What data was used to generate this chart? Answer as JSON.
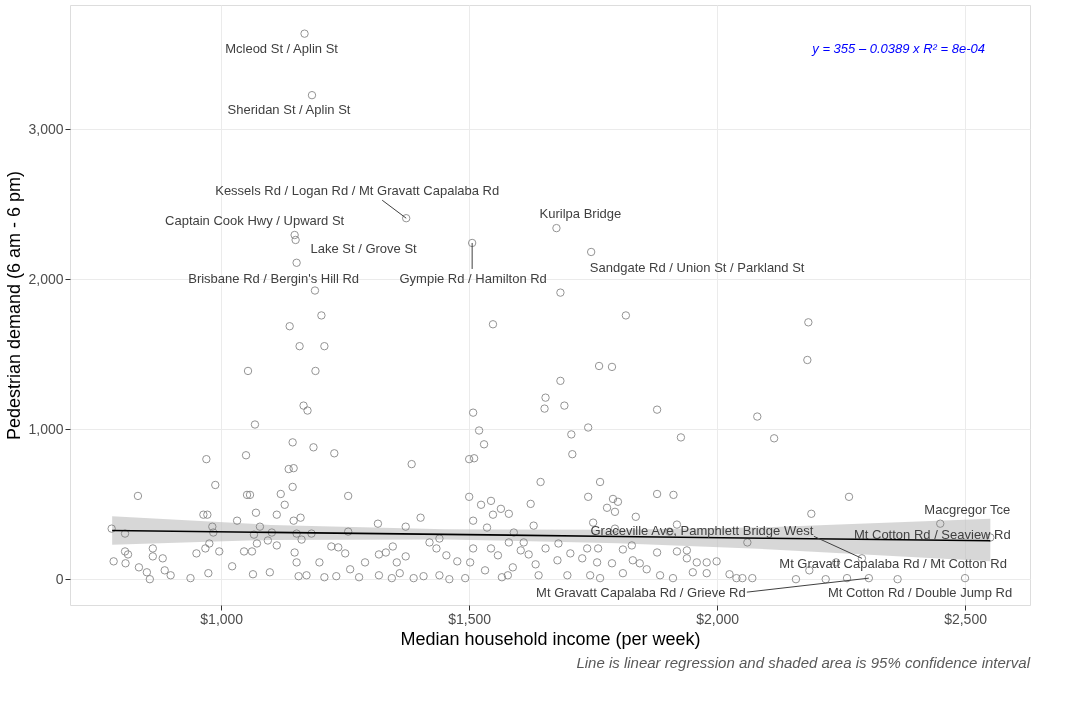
{
  "chart_data": {
    "type": "scatter",
    "xlabel": "Median household income (per week)",
    "ylabel": "Pedestrian demand (6 am - 6 pm)",
    "xlim": [
      695,
      2631
    ],
    "ylim": [
      -172,
      3827
    ],
    "xticks": [
      {
        "value": 1000,
        "label": "$1,000"
      },
      {
        "value": 1500,
        "label": "$1,500"
      },
      {
        "value": 2000,
        "label": "$2,000"
      },
      {
        "value": 2500,
        "label": "$2,500"
      }
    ],
    "yticks": [
      0,
      {
        "value": 1000,
        "label": "1,000"
      },
      {
        "value": 2000,
        "label": "2,000"
      },
      {
        "value": 3000,
        "label": "3,000"
      }
    ],
    "grid": true,
    "series": [
      {
        "color": "#808080",
        "marker": "circle",
        "x": [
          1168,
          1183,
          1373,
          1148,
          1150,
          1152,
          1506,
          1676,
          1746,
          2450,
          2292,
          2551,
          2240,
          2500,
          2306,
          1189,
          1684,
          1138,
          1202,
          1158,
          1208,
          1190,
          1054,
          1166,
          1174,
          1068,
          1144,
          1186,
          1228,
          1136,
          1146,
          970,
          1050,
          988,
          1052,
          1144,
          1070,
          964,
          1120,
          1128,
          1112,
          1160,
          1146,
          1058,
          832,
          972,
          982,
          984,
          976,
          968,
          950,
          996,
          779,
          806,
          806,
          812,
          783,
          807,
          862,
          862,
          882,
          886,
          834,
          850,
          856,
          898,
          938,
          974,
          1022,
          1032,
          1046,
          1062,
          1072,
          1078,
          1066,
          1064,
          1098,
          1094,
          1112,
          1102,
          1152,
          1162,
          1182,
          1148,
          1152,
          1156,
          1172,
          1198,
          1208,
          1232,
          1222,
          1236,
          1250,
          1256,
          1256,
          1260,
          1278,
          1290,
          1316,
          1318,
          1332,
          1346,
          1354,
          1318,
          1344,
          1360,
          1372,
          1372,
          1384,
          1402,
          1420,
          1434,
          1440,
          1388,
          1408,
          1440,
          1460,
          1454,
          1476,
          1492,
          1500,
          1500,
          1510,
          1508,
          1520,
          1530,
          1548,
          1524,
          1544,
          1548,
          1564,
          1580,
          1508,
          1536,
          1508,
          1502,
          1532,
          1544,
          1558,
          1580,
          1590,
          1588,
          1578,
          1566,
          1624,
          1644,
          1654,
          1652,
          1630,
          1610,
          1620,
          1604,
          1654,
          1634,
          1640,
          1816,
          2184,
          2182,
          1762,
          1788,
          1684,
          1692,
          1879,
          2081,
          2115,
          1927,
          1740,
          1706,
          1708,
          1764,
          1740,
          1879,
          1912,
          2266,
          2190,
          1790,
          1800,
          1778,
          1794,
          1836,
          1750,
          1794,
          1919,
          1904,
          2061,
          1680,
          1704,
          1738,
          1760,
          1810,
          1828,
          1879,
          1919,
          1939,
          1678,
          1728,
          1758,
          1788,
          1830,
          1844,
          1858,
          1939,
          1959,
          1979,
          1999,
          1951,
          1979,
          2025,
          2039,
          2051,
          2071,
          2159,
          2219,
          1698,
          1744,
          1764,
          1810,
          1885,
          1911,
          2186,
          2262,
          2364
        ],
        "values": [
          3636,
          3226,
          2406,
          2294,
          2261,
          2109,
          2241,
          2340,
          2181,
          370,
          139,
          278,
          112,
          7,
          7,
          1924,
          1910,
          1686,
          1758,
          1553,
          1553,
          1388,
          1388,
          1157,
          1124,
          1031,
          912,
          879,
          839,
          734,
          740,
          800,
          826,
          628,
          562,
          615,
          443,
          430,
          568,
          496,
          430,
          410,
          390,
          562,
          555,
          430,
          350,
          311,
          238,
          205,
          172,
          185,
          337,
          304,
          185,
          165,
          119,
          106,
          205,
          152,
          139,
          59,
          79,
          46,
          0,
          26,
          7,
          40,
          86,
          390,
          185,
          185,
          238,
          350,
          297,
          33,
          46,
          258,
          225,
          311,
          304,
          264,
          304,
          178,
          112,
          20,
          26,
          112,
          13,
          20,
          218,
          212,
          172,
          555,
          317,
          66,
          13,
          112,
          370,
          165,
          178,
          218,
          112,
          26,
          7,
          40,
          350,
          152,
          767,
          410,
          245,
          205,
          271,
          7,
          20,
          26,
          0,
          159,
          119,
          7,
          549,
          800,
          806,
          1110,
          991,
          899,
          1699,
          496,
          522,
          430,
          469,
          436,
          390,
          344,
          205,
          112,
          59,
          205,
          159,
          245,
          311,
          79,
          26,
          13,
          502,
          648,
          1210,
          1137,
          357,
          245,
          165,
          192,
          205,
          99,
          26,
          1758,
          1712,
          1461,
          1421,
          1415,
          1322,
          1157,
          1130,
          1084,
          939,
          945,
          1011,
          965,
          833,
          648,
          549,
          568,
          562,
          549,
          436,
          535,
          516,
          476,
          449,
          416,
          377,
          337,
          364,
          317,
          245,
          238,
          172,
          205,
          205,
          198,
          225,
          178,
          185,
          192,
          126,
          139,
          112,
          106,
          126,
          106,
          66,
          139,
          112,
          112,
          119,
          46,
          40,
          33,
          7,
          7,
          7,
          0,
          0,
          26,
          26,
          7,
          40,
          26,
          7,
          59,
          7,
          0
        ]
      },
      {
        "type": "line",
        "color": "#000000",
        "x": [
          780,
          1100,
          1450,
          1800,
          2100,
          2551
        ],
        "values": [
          325,
          312,
          299,
          285,
          273,
          256
        ],
        "lower": [
          230,
          262,
          265,
          240,
          200,
          119
        ],
        "upper": [
          420,
          362,
          333,
          330,
          346,
          403
        ]
      }
    ],
    "annotations": [
      {
        "text": "Mcleod St / Aplin St",
        "x": 1168,
        "y": 3636
      },
      {
        "text": "Sheridan St / Aplin St",
        "x": 1183,
        "y": 3226
      },
      {
        "text": "Kessels Rd / Logan Rd / Mt Gravatt Capalaba Rd",
        "x": 1373,
        "y": 2406
      },
      {
        "text": "Captain Cook Hwy / Upward St",
        "x": 1148,
        "y": 2294
      },
      {
        "text": "Lake St / Grove St",
        "x": 1150,
        "y": 2261
      },
      {
        "text": "Brisbane Rd / Bergin's Hill Rd",
        "x": 1152,
        "y": 2109
      },
      {
        "text": "Gympie Rd / Hamilton Rd",
        "x": 1506,
        "y": 2241
      },
      {
        "text": "Kurilpa Bridge",
        "x": 1676,
        "y": 2340
      },
      {
        "text": "Sandgate Rd / Union St / Parkland St",
        "x": 1746,
        "y": 2181
      },
      {
        "text": "Macgregor Tce",
        "x": 2450,
        "y": 370
      },
      {
        "text": "Graceville Ave, Pamphlett Bridge West",
        "x": 2292,
        "y": 139
      },
      {
        "text": "Mt Cotton Rd / Seaview Rd",
        "x": 2551,
        "y": 278
      },
      {
        "text": "Mt Gravatt Capalaba Rd / Mt Cotton Rd",
        "x": 2240,
        "y": 112
      },
      {
        "text": "Mt Cotton Rd / Double Jump Rd",
        "x": 2500,
        "y": 7
      },
      {
        "text": "Mt Gravatt Capalaba Rd / Grieve Rd",
        "x": 2306,
        "y": 7
      },
      "y = 355 – 0.0389 x   R² = 8e-04",
      "Line is linear regression and shaded area is 95% confidence interval"
    ]
  }
}
